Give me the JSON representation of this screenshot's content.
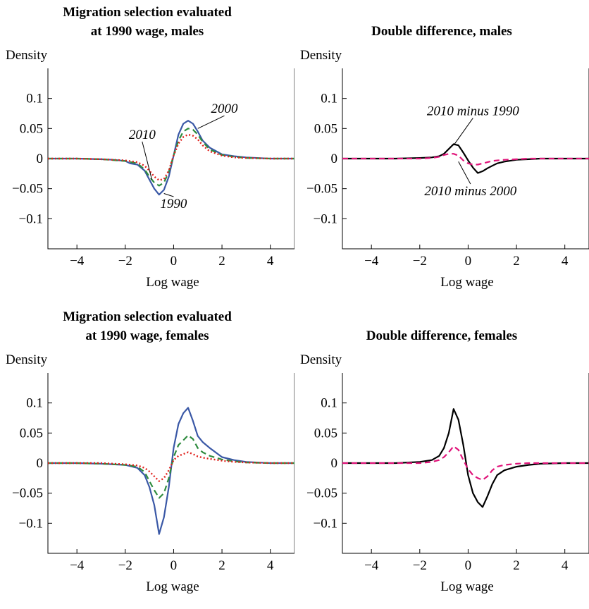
{
  "chart_data": [
    {
      "type": "line",
      "title_lines": [
        "Migration selection evaluated",
        "at 1990 wage, males"
      ],
      "ylabel": "Density",
      "xlabel": "Log wage",
      "xlim": [
        -5.2,
        5.0
      ],
      "ylim": [
        -0.15,
        0.15
      ],
      "xticks": [
        -4,
        -2,
        0,
        2,
        4
      ],
      "xtick_labels": [
        "−4",
        "−2",
        "0",
        "2",
        "4"
      ],
      "yticks": [
        0.1,
        0.05,
        0,
        -0.05,
        -0.1
      ],
      "ytick_labels": [
        "0.1",
        "0.05",
        "0",
        "−0.05",
        "−0.1"
      ],
      "grid": false,
      "annotations": [
        {
          "text": "2000",
          "x": 2.1,
          "y": 0.076,
          "arrow_to": [
            1.0,
            0.05
          ]
        },
        {
          "text": "2010",
          "x": -1.3,
          "y": 0.033,
          "arrow_to": [
            -0.9,
            -0.035
          ]
        },
        {
          "text": "1990",
          "x": 0.0,
          "y": -0.082,
          "arrow_to": [
            -0.4,
            -0.058
          ]
        }
      ],
      "series": [
        {
          "name": "1990",
          "color": "#3a58a6",
          "dash": "solid",
          "x": [
            -5.2,
            -4,
            -3,
            -2.5,
            -2,
            -1.8,
            -1.5,
            -1.2,
            -1,
            -0.8,
            -0.6,
            -0.4,
            -0.2,
            0,
            0.2,
            0.4,
            0.6,
            0.8,
            1,
            1.2,
            1.5,
            2,
            2.5,
            3,
            4,
            5
          ],
          "y": [
            0,
            0,
            -0.001,
            -0.002,
            -0.004,
            -0.008,
            -0.01,
            -0.02,
            -0.035,
            -0.05,
            -0.06,
            -0.052,
            -0.03,
            0.005,
            0.04,
            0.058,
            0.063,
            0.058,
            0.045,
            0.03,
            0.018,
            0.007,
            0.004,
            0.002,
            0,
            0
          ]
        },
        {
          "name": "2000",
          "color": "#2e8b3e",
          "dash": "8,5",
          "x": [
            -5.2,
            -4,
            -3,
            -2,
            -1.5,
            -1.2,
            -1,
            -0.8,
            -0.6,
            -0.4,
            -0.2,
            0,
            0.2,
            0.4,
            0.6,
            0.8,
            1,
            1.2,
            1.5,
            2,
            2.5,
            3,
            4,
            5
          ],
          "y": [
            0,
            0,
            -0.001,
            -0.004,
            -0.008,
            -0.018,
            -0.03,
            -0.04,
            -0.045,
            -0.04,
            -0.022,
            0.005,
            0.03,
            0.045,
            0.05,
            0.048,
            0.04,
            0.028,
            0.015,
            0.006,
            0.003,
            0.001,
            0,
            0
          ]
        },
        {
          "name": "2010",
          "color": "#e0201b",
          "dash": "2,3",
          "x": [
            -5.2,
            -4,
            -3,
            -2,
            -1.5,
            -1.2,
            -1,
            -0.8,
            -0.6,
            -0.4,
            -0.2,
            0,
            0.2,
            0.4,
            0.6,
            0.8,
            1,
            1.2,
            1.5,
            2,
            2.5,
            3,
            4,
            5
          ],
          "y": [
            0,
            0,
            -0.001,
            -0.003,
            -0.006,
            -0.012,
            -0.02,
            -0.03,
            -0.036,
            -0.034,
            -0.02,
            0.005,
            0.025,
            0.036,
            0.04,
            0.038,
            0.032,
            0.022,
            0.012,
            0.005,
            0.002,
            0.001,
            0,
            0
          ]
        }
      ]
    },
    {
      "type": "line",
      "title_lines": [
        "Double difference, males"
      ],
      "ylabel": "Density",
      "xlabel": "Log wage",
      "xlim": [
        -5.2,
        5.0
      ],
      "ylim": [
        -0.15,
        0.15
      ],
      "xticks": [
        -4,
        -2,
        0,
        2,
        4
      ],
      "xtick_labels": [
        "−4",
        "−2",
        "0",
        "2",
        "4"
      ],
      "yticks": [
        0.1,
        0.05,
        0,
        -0.05,
        -0.1
      ],
      "ytick_labels": [
        "0.1",
        "0.05",
        "0",
        "−0.05",
        "−0.1"
      ],
      "grid": false,
      "annotations": [
        {
          "text": "2010 minus 1990",
          "x": 0.2,
          "y": 0.072,
          "arrow_to": [
            -0.6,
            0.022
          ]
        },
        {
          "text": "2010 minus 2000",
          "x": 0.1,
          "y": -0.061,
          "arrow_to": [
            -0.4,
            -0.005
          ]
        }
      ],
      "series": [
        {
          "name": "2010 minus 1990",
          "color": "#000000",
          "dash": "solid",
          "x": [
            -5.2,
            -4,
            -3,
            -2,
            -1.5,
            -1.2,
            -1,
            -0.8,
            -0.6,
            -0.4,
            -0.2,
            0,
            0.2,
            0.4,
            0.6,
            0.8,
            1,
            1.2,
            1.5,
            2,
            2.5,
            3,
            4,
            5
          ],
          "y": [
            0,
            0,
            0,
            0.001,
            0.002,
            0.004,
            0.008,
            0.016,
            0.024,
            0.022,
            0.01,
            -0.003,
            -0.015,
            -0.024,
            -0.021,
            -0.016,
            -0.012,
            -0.008,
            -0.005,
            -0.002,
            -0.001,
            0,
            0,
            0
          ]
        },
        {
          "name": "2010 minus 2000",
          "color": "#e0147a",
          "dash": "8,5",
          "x": [
            -5.2,
            -4,
            -3,
            -2,
            -1.5,
            -1.2,
            -1,
            -0.8,
            -0.6,
            -0.4,
            -0.2,
            0,
            0.2,
            0.4,
            0.6,
            0.8,
            1,
            1.2,
            1.5,
            2,
            2.5,
            3,
            4,
            5
          ],
          "y": [
            0,
            0,
            0,
            0,
            0.001,
            0.003,
            0.006,
            0.008,
            0.008,
            0.005,
            -0.003,
            -0.008,
            -0.01,
            -0.01,
            -0.008,
            -0.006,
            -0.004,
            -0.003,
            -0.002,
            -0.001,
            0,
            0,
            0,
            0
          ]
        }
      ]
    },
    {
      "type": "line",
      "title_lines": [
        "Migration selection evaluated",
        "at 1990 wage, females"
      ],
      "ylabel": "Density",
      "xlabel": "Log wage",
      "xlim": [
        -5.2,
        5.0
      ],
      "ylim": [
        -0.15,
        0.15
      ],
      "xticks": [
        -4,
        -2,
        0,
        2,
        4
      ],
      "xtick_labels": [
        "−4",
        "−2",
        "0",
        "2",
        "4"
      ],
      "yticks": [
        0.1,
        0.05,
        0,
        -0.05,
        -0.1
      ],
      "ytick_labels": [
        "0.1",
        "0.05",
        "0",
        "−0.05",
        "−0.1"
      ],
      "grid": false,
      "annotations": [],
      "series": [
        {
          "name": "1990",
          "color": "#3a58a6",
          "dash": "solid",
          "x": [
            -5.2,
            -4,
            -3,
            -2,
            -1.5,
            -1.2,
            -1,
            -0.8,
            -0.6,
            -0.4,
            -0.2,
            0,
            0.2,
            0.4,
            0.6,
            0.8,
            1,
            1.2,
            1.5,
            2,
            2.5,
            3,
            4,
            5
          ],
          "y": [
            0,
            0,
            -0.001,
            -0.003,
            -0.008,
            -0.02,
            -0.04,
            -0.07,
            -0.118,
            -0.09,
            -0.04,
            0.025,
            0.065,
            0.083,
            0.092,
            0.07,
            0.045,
            0.035,
            0.025,
            0.01,
            0.005,
            0.002,
            0,
            0
          ]
        },
        {
          "name": "2000",
          "color": "#2e8b3e",
          "dash": "8,5",
          "x": [
            -5.2,
            -4,
            -3,
            -2,
            -1.5,
            -1.2,
            -1,
            -0.8,
            -0.6,
            -0.4,
            -0.2,
            0,
            0.2,
            0.4,
            0.6,
            0.8,
            1,
            1.2,
            1.5,
            2,
            2.5,
            3,
            4,
            5
          ],
          "y": [
            0,
            0,
            -0.001,
            -0.003,
            -0.006,
            -0.015,
            -0.03,
            -0.045,
            -0.058,
            -0.05,
            -0.025,
            0.01,
            0.03,
            0.038,
            0.046,
            0.04,
            0.025,
            0.018,
            0.012,
            0.006,
            0.003,
            0.001,
            0,
            0
          ]
        },
        {
          "name": "2010",
          "color": "#e0201b",
          "dash": "2,3",
          "x": [
            -5.2,
            -4,
            -3,
            -2,
            -1.5,
            -1.2,
            -1,
            -0.8,
            -0.6,
            -0.4,
            -0.2,
            0,
            0.2,
            0.4,
            0.6,
            0.8,
            1,
            1.2,
            1.5,
            2,
            2.5,
            3,
            4,
            5
          ],
          "y": [
            0,
            0,
            0,
            -0.002,
            -0.004,
            -0.008,
            -0.014,
            -0.022,
            -0.03,
            -0.025,
            -0.012,
            0.005,
            0.012,
            0.015,
            0.018,
            0.015,
            0.011,
            0.009,
            0.007,
            0.004,
            0.002,
            0.001,
            0,
            0
          ]
        }
      ]
    },
    {
      "type": "line",
      "title_lines": [
        "Double difference, females"
      ],
      "ylabel": "Density",
      "xlabel": "Log wage",
      "xlim": [
        -5.2,
        5.0
      ],
      "ylim": [
        -0.15,
        0.15
      ],
      "xticks": [
        -4,
        -2,
        0,
        2,
        4
      ],
      "xtick_labels": [
        "−4",
        "−2",
        "0",
        "2",
        "4"
      ],
      "yticks": [
        0.1,
        0.05,
        0,
        -0.05,
        -0.1
      ],
      "ytick_labels": [
        "0.1",
        "0.05",
        "0",
        "−0.05",
        "−0.1"
      ],
      "grid": false,
      "annotations": [],
      "series": [
        {
          "name": "2010 minus 1990",
          "color": "#000000",
          "dash": "solid",
          "x": [
            -5.2,
            -4,
            -3,
            -2,
            -1.5,
            -1.2,
            -1,
            -0.8,
            -0.6,
            -0.4,
            -0.2,
            0,
            0.2,
            0.4,
            0.6,
            0.8,
            1,
            1.2,
            1.5,
            2,
            2.5,
            3,
            4,
            5
          ],
          "y": [
            0,
            0,
            0,
            0.002,
            0.005,
            0.012,
            0.025,
            0.05,
            0.09,
            0.072,
            0.03,
            -0.02,
            -0.05,
            -0.065,
            -0.073,
            -0.055,
            -0.035,
            -0.02,
            -0.012,
            -0.006,
            -0.003,
            -0.001,
            0,
            0
          ]
        },
        {
          "name": "2010 minus 2000",
          "color": "#e0147a",
          "dash": "8,5",
          "x": [
            -5.2,
            -4,
            -3,
            -2,
            -1.5,
            -1.2,
            -1,
            -0.8,
            -0.6,
            -0.4,
            -0.2,
            0,
            0.2,
            0.4,
            0.6,
            0.8,
            1,
            1.2,
            1.5,
            2,
            2.5,
            3,
            4,
            5
          ],
          "y": [
            0,
            0,
            0,
            0,
            0.002,
            0.005,
            0.01,
            0.018,
            0.028,
            0.022,
            0.005,
            -0.01,
            -0.02,
            -0.025,
            -0.028,
            -0.022,
            -0.012,
            -0.006,
            -0.003,
            -0.001,
            0,
            0,
            0,
            0
          ]
        }
      ]
    }
  ]
}
